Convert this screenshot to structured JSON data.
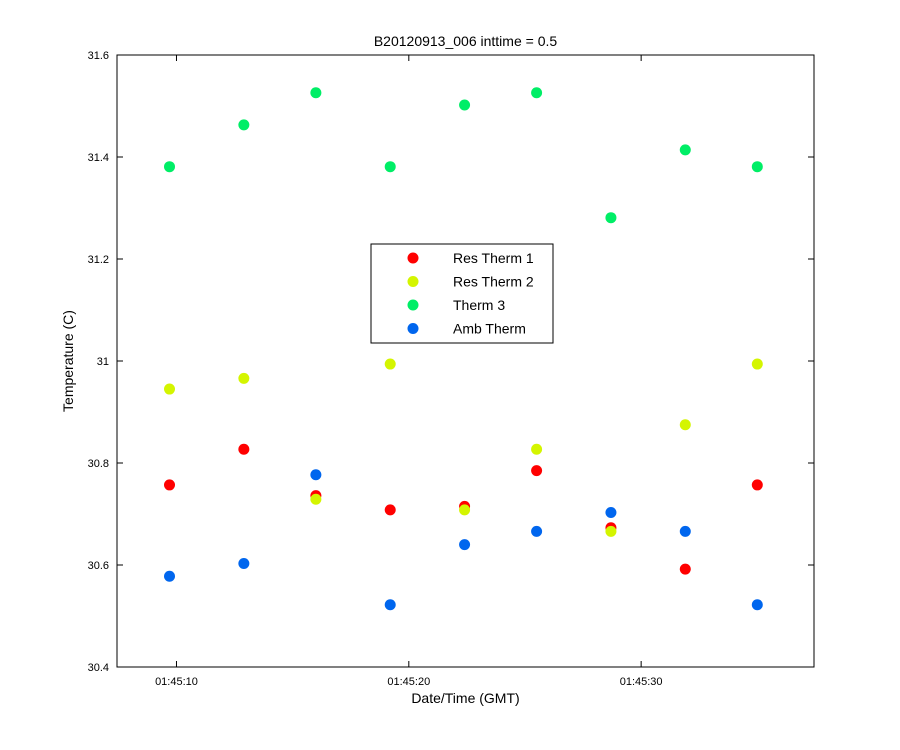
{
  "chart_data": {
    "type": "scatter",
    "title": "B20120913_006 inttime = 0.5",
    "xlabel": "Date/Time (GMT)",
    "ylabel": "Temperature (C)",
    "xlim": [
      "01:45:07.44",
      "01:45:37.44"
    ],
    "ylim": [
      30.4,
      31.6
    ],
    "x_ticks": [
      "01:45:10",
      "01:45:20",
      "01:45:30"
    ],
    "y_ticks": [
      "30.4",
      "30.6",
      "30.8",
      "31",
      "31.2",
      "31.4",
      "31.6"
    ],
    "legend_position": "center",
    "x": [
      "01:45:09.7",
      "01:45:12.9",
      "01:45:16.0",
      "01:45:19.2",
      "01:45:22.4",
      "01:45:25.5",
      "01:45:28.7",
      "01:45:31.9",
      "01:45:35.0"
    ],
    "series": [
      {
        "name": "Res Therm 1",
        "color": "#ff0000",
        "values": [
          30.757,
          30.827,
          30.736,
          30.708,
          30.715,
          30.785,
          30.673,
          30.592,
          30.757
        ]
      },
      {
        "name": "Res Therm 2",
        "color": "#d4f500",
        "values": [
          30.945,
          30.966,
          30.729,
          30.994,
          30.708,
          30.827,
          30.666,
          30.875,
          30.994
        ]
      },
      {
        "name": "Therm 3",
        "color": "#00ee66",
        "values": [
          31.381,
          31.463,
          31.526,
          31.381,
          31.502,
          31.526,
          31.281,
          31.414,
          31.381
        ]
      },
      {
        "name": "Amb Therm",
        "color": "#0066ee",
        "values": [
          30.578,
          30.603,
          30.777,
          30.522,
          30.64,
          30.666,
          30.703,
          30.666,
          30.522
        ]
      }
    ]
  }
}
